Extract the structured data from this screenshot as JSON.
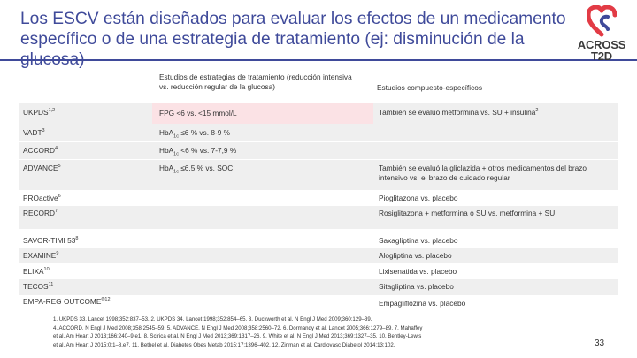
{
  "title": {
    "line1": "Los ESCV están diseñados para evaluar los efectos de un medicamento",
    "line2": "específico o de una estrategia de tratamiento (ej: disminución de la glucosa)"
  },
  "logo": {
    "line1": "ACROSS",
    "line2": "T2D",
    "colors": {
      "red": "#e23b45",
      "blue": "#3f4a9a"
    }
  },
  "table": {
    "header": {
      "col2": "Estudios de estrategias de tratamiento (reducción intensiva vs. reducción regular de la glucosa)",
      "col3": "Estudios compuesto-específicos"
    },
    "rows": [
      {
        "c1": "UKPDS",
        "c1_sup": "1,2",
        "c2": "FPG <6 vs. <15 mmol/L",
        "c3": "También se evaluó metformina vs. SU + insulina",
        "c3_sup": "2"
      },
      {
        "c1": "VADT",
        "c1_sup": "3",
        "c2_pre": "HbA",
        "c2_sub": "1c",
        "c2_post": " ≤6 % vs. 8-9 %",
        "c3": ""
      },
      {
        "c1": "ACCORD",
        "c1_sup": "4",
        "c2_pre": "HbA",
        "c2_sub": "1c",
        "c2_post": " <6 % vs. 7-7,9 %",
        "c3": ""
      },
      {
        "c1": "ADVANCE",
        "c1_sup": "5",
        "c2_pre": "HbA",
        "c2_sub": "1c",
        "c2_post": " ≤6,5 % vs. SOC",
        "c3": "También se evaluó la gliclazida + otros medicamentos del brazo intensivo vs. el brazo de cuidado regular"
      },
      {
        "c1": "PROactive",
        "c1_sup": "6",
        "c2": "",
        "c3": "Pioglitazona vs. placebo"
      },
      {
        "c1": "RECORD",
        "c1_sup": "7",
        "c2": "",
        "c3": "Rosiglitazona + metformina o SU vs. metformina + SU"
      },
      {
        "c1": "SAVOR-TIMI 53",
        "c1_sup": "8",
        "c2": "",
        "c3": "Saxagliptina vs. placebo"
      },
      {
        "c1": "EXAMINE",
        "c1_sup": "9",
        "c2": "",
        "c3": "Alogliptina vs. placebo"
      },
      {
        "c1": "ELIXA",
        "c1_sup": "10",
        "c2": "",
        "c3": "Lixisenatida vs. placebo"
      },
      {
        "c1": "TECOS",
        "c1_sup": "11",
        "c2": "",
        "c3": "Sitagliptina vs. placebo"
      },
      {
        "c1": "EMPA-REG OUTCOME",
        "c1_sup": "®12",
        "c2": "",
        "c3": "Empagliflozina vs. placebo"
      }
    ]
  },
  "footnote": {
    "line1": "1. UKPDS 33. Lancet 1998;352:837–53. 2. UKPDS 34. Lancet 1998;352:854–65. 3. Duckworth et al. N Engl J Med 2009;360:129–39.",
    "line2": "4. ACCORD. N Engl J Med 2008;358:2545–59. 5. ADVANCE. N Engl J Med 2008;358:2560–72. 6. Dormandy et al. Lancet 2005;366:1279–89. 7. Mahaffey",
    "line3": "et al. Am Heart J 2013;166:240–9.e1. 8. Scirica et al. N Engl J Med 2013;369:1317–26. 9. White et al. N Engl J Med 2013;369:1327–35. 10. Bentley-Lewis",
    "line4": "et al. Am Heart J 2015;0:1–8.e7. 11. Bethel et al. Diabetes Obes Metab 2015:17:1396–402. 12. Zinman et al. Cardiovasc Diabetol 2014;13:102."
  },
  "page_number": "33"
}
